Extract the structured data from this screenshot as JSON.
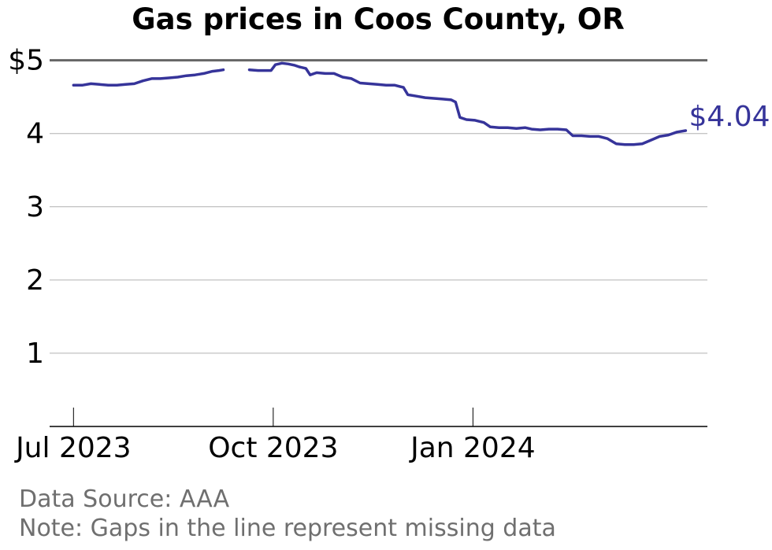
{
  "chart_data": {
    "type": "line",
    "title": "Gas prices in Coos County, OR",
    "xlabel": "",
    "ylabel": "",
    "y_ticks": [
      {
        "value": 1,
        "label": "1"
      },
      {
        "value": 2,
        "label": "2"
      },
      {
        "value": 3,
        "label": "3"
      },
      {
        "value": 4,
        "label": "4"
      },
      {
        "value": 5,
        "label": "$5"
      }
    ],
    "x_ticks": [
      {
        "value": "2023-07-01",
        "label": "Jul 2023"
      },
      {
        "value": "2023-10-01",
        "label": "Oct 2023"
      },
      {
        "value": "2024-01-01",
        "label": "Jan 2024"
      }
    ],
    "xlim": [
      "2023-06-20",
      "2024-04-18"
    ],
    "ylim": [
      0,
      5.2
    ],
    "grid": true,
    "last_value_label": "$4.04",
    "series": [
      {
        "color": "#36349a",
        "segments": [
          [
            [
              "2023-07-01",
              4.66
            ],
            [
              "2023-07-05",
              4.66
            ],
            [
              "2023-07-09",
              4.68
            ],
            [
              "2023-07-13",
              4.67
            ],
            [
              "2023-07-17",
              4.66
            ],
            [
              "2023-07-21",
              4.66
            ],
            [
              "2023-07-25",
              4.67
            ],
            [
              "2023-07-29",
              4.68
            ],
            [
              "2023-08-02",
              4.72
            ],
            [
              "2023-08-06",
              4.75
            ],
            [
              "2023-08-10",
              4.75
            ],
            [
              "2023-08-14",
              4.76
            ],
            [
              "2023-08-18",
              4.77
            ],
            [
              "2023-08-22",
              4.79
            ],
            [
              "2023-08-26",
              4.8
            ],
            [
              "2023-08-30",
              4.82
            ],
            [
              "2023-09-03",
              4.85
            ],
            [
              "2023-09-06",
              4.86
            ],
            [
              "2023-09-08",
              4.87
            ]
          ],
          [
            [
              "2023-09-20",
              4.87
            ],
            [
              "2023-09-24",
              4.86
            ],
            [
              "2023-09-28",
              4.86
            ],
            [
              "2023-09-30",
              4.86
            ],
            [
              "2023-10-02",
              4.94
            ],
            [
              "2023-10-05",
              4.96
            ],
            [
              "2023-10-08",
              4.95
            ],
            [
              "2023-10-11",
              4.93
            ],
            [
              "2023-10-13",
              4.91
            ],
            [
              "2023-10-16",
              4.89
            ],
            [
              "2023-10-18",
              4.8
            ],
            [
              "2023-10-21",
              4.83
            ],
            [
              "2023-10-25",
              4.82
            ],
            [
              "2023-10-29",
              4.82
            ],
            [
              "2023-11-02",
              4.77
            ],
            [
              "2023-11-06",
              4.75
            ],
            [
              "2023-11-10",
              4.69
            ],
            [
              "2023-11-14",
              4.68
            ],
            [
              "2023-11-18",
              4.67
            ],
            [
              "2023-11-22",
              4.66
            ],
            [
              "2023-11-26",
              4.66
            ],
            [
              "2023-11-30",
              4.63
            ],
            [
              "2023-12-02",
              4.53
            ],
            [
              "2023-12-06",
              4.51
            ],
            [
              "2023-12-10",
              4.49
            ],
            [
              "2023-12-14",
              4.48
            ],
            [
              "2023-12-18",
              4.47
            ],
            [
              "2023-12-22",
              4.46
            ],
            [
              "2023-12-24",
              4.43
            ],
            [
              "2023-12-26",
              4.22
            ],
            [
              "2023-12-29",
              4.19
            ],
            [
              "2024-01-02",
              4.18
            ],
            [
              "2024-01-06",
              4.15
            ],
            [
              "2024-01-09",
              4.09
            ],
            [
              "2024-01-13",
              4.08
            ],
            [
              "2024-01-17",
              4.08
            ],
            [
              "2024-01-21",
              4.07
            ],
            [
              "2024-01-25",
              4.08
            ],
            [
              "2024-01-28",
              4.06
            ],
            [
              "2024-02-01",
              4.05
            ],
            [
              "2024-02-05",
              4.06
            ],
            [
              "2024-02-09",
              4.06
            ],
            [
              "2024-02-13",
              4.05
            ],
            [
              "2024-02-16",
              3.97
            ],
            [
              "2024-02-20",
              3.97
            ],
            [
              "2024-02-24",
              3.96
            ],
            [
              "2024-02-28",
              3.96
            ],
            [
              "2024-03-03",
              3.93
            ],
            [
              "2024-03-07",
              3.86
            ],
            [
              "2024-03-11",
              3.85
            ],
            [
              "2024-03-15",
              3.85
            ],
            [
              "2024-03-19",
              3.86
            ],
            [
              "2024-03-23",
              3.91
            ],
            [
              "2024-03-27",
              3.96
            ],
            [
              "2024-03-31",
              3.98
            ],
            [
              "2024-04-04",
              4.02
            ],
            [
              "2024-04-08",
              4.04
            ]
          ]
        ]
      }
    ]
  },
  "footer": {
    "source": "Data Source: AAA",
    "note": "Note: Gaps in the line represent missing data"
  }
}
